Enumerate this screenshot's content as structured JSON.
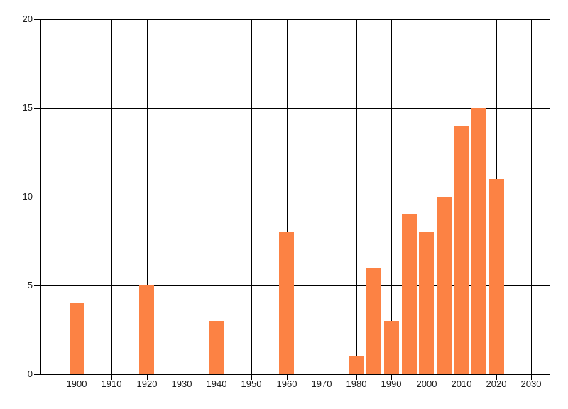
{
  "chart_data": {
    "type": "bar",
    "title": "",
    "xlabel": "",
    "ylabel": "",
    "x": [
      1900,
      1920,
      1940,
      1960,
      1980,
      1985,
      1990,
      1995,
      2000,
      2005,
      2010,
      2015,
      2020
    ],
    "values": [
      4,
      5,
      3,
      8,
      1,
      6,
      3,
      9,
      8,
      10,
      14,
      15,
      11
    ],
    "xlim": [
      1889.6,
      2035.4
    ],
    "ylim": [
      0,
      20
    ],
    "xticks": [
      1900,
      1910,
      1920,
      1930,
      1940,
      1950,
      1960,
      1970,
      1980,
      1990,
      2000,
      2010,
      2020,
      2030
    ],
    "yticks": [
      0,
      5,
      10,
      15,
      20
    ],
    "grid": "both",
    "legend": "none",
    "bar_color": "#fc8244",
    "grid_color": "#000000",
    "axis_color": "#000000",
    "tick_label_color": "#1a1a1a",
    "background_color": "#ffffff"
  }
}
